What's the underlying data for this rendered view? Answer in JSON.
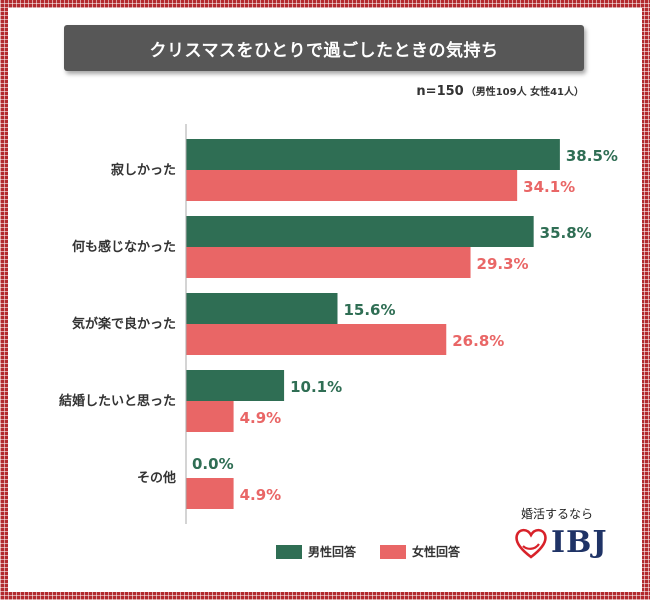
{
  "title": "クリスマスをひとりで過ごしたときの気持ち",
  "sample": {
    "n": "n=150",
    "detail": "（男性109人  女性41人）"
  },
  "legend": {
    "male": "男性回答",
    "female": "女性回答"
  },
  "logo": {
    "tagline": "婚活するなら",
    "brand": "IBJ"
  },
  "colors": {
    "male": "#2f6e54",
    "female": "#e96666"
  },
  "chart_data": {
    "type": "bar",
    "orientation": "horizontal",
    "title": "クリスマスをひとりで過ごしたときの気持ち",
    "categories": [
      "寂しかった",
      "何も感じなかった",
      "気が楽で良かった",
      "結婚したいと思った",
      "その他"
    ],
    "series": [
      {
        "name": "男性回答",
        "values": [
          38.5,
          35.8,
          15.6,
          10.1,
          0.0
        ],
        "labels": [
          "38.5%",
          "35.8%",
          "15.6%",
          "10.1%",
          "0.0%"
        ]
      },
      {
        "name": "女性回答",
        "values": [
          34.1,
          29.3,
          26.8,
          4.9,
          4.9
        ],
        "labels": [
          "34.1%",
          "29.3%",
          "26.8%",
          "4.9%",
          "4.9%"
        ]
      }
    ],
    "xlim": [
      0,
      100
    ],
    "unit": "%",
    "xlabel": "",
    "ylabel": "",
    "legend_position": "bottom"
  }
}
